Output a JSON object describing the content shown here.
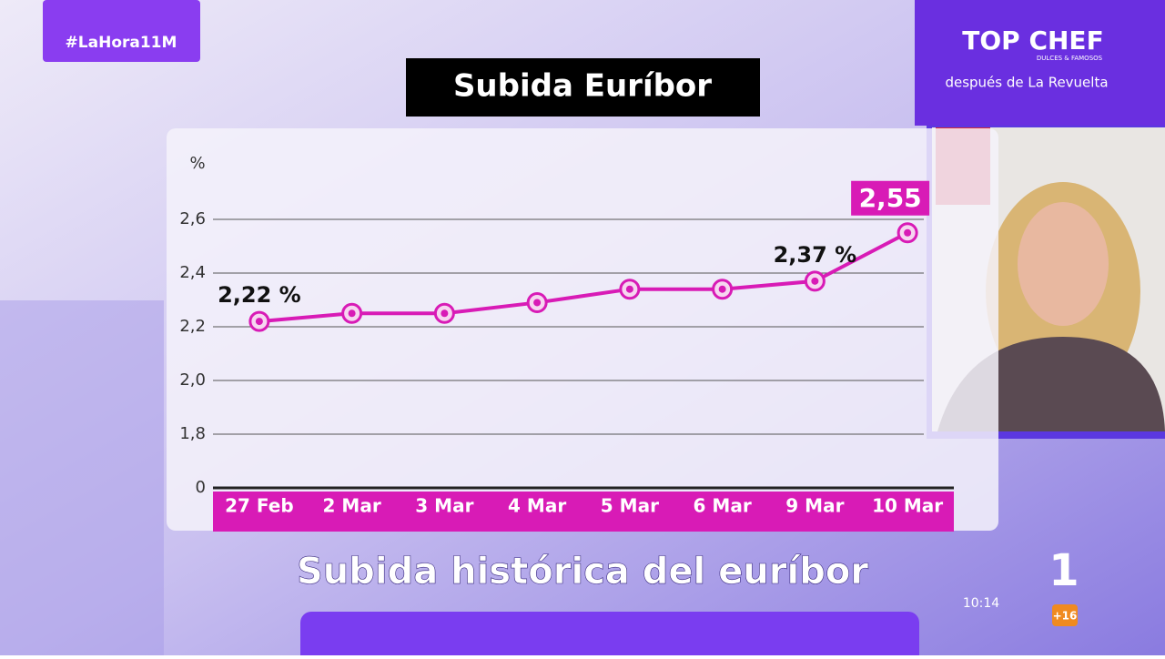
{
  "hashtag": "#LaHora11M",
  "promo": {
    "logo": "TOP CHEF",
    "logo_sub": "DULCES & FAMOSOS",
    "tagline": "después de La Revuelta"
  },
  "caption": "Subida histórica del euríbor",
  "clock": "10:14",
  "channel": "1",
  "rating": "+16",
  "chart_data": {
    "type": "line",
    "title": "Subida Euríbor",
    "y_label": "%",
    "categories": [
      "27 Feb",
      "2 Mar",
      "3 Mar",
      "4 Mar",
      "5 Mar",
      "6 Mar",
      "9 Mar",
      "10 Mar"
    ],
    "series": [
      {
        "name": "Euríbor",
        "color": "#d81bb6",
        "values": [
          2.22,
          2.25,
          2.25,
          2.29,
          2.34,
          2.34,
          2.37,
          2.55
        ],
        "value_labels": [
          "2,22 %",
          null,
          null,
          null,
          null,
          null,
          "2,37 %",
          "2,55"
        ]
      }
    ],
    "ylim": [
      1.6,
      2.7
    ],
    "axis_break": true,
    "yticks": [
      {
        "value": 0,
        "label": "0"
      },
      {
        "value": 1.8,
        "label": "1,8"
      },
      {
        "value": 2.0,
        "label": "2,0"
      },
      {
        "value": 2.2,
        "label": "2,2"
      },
      {
        "value": 2.4,
        "label": "2,4"
      },
      {
        "value": 2.6,
        "label": "2,6"
      }
    ],
    "grid": true
  }
}
